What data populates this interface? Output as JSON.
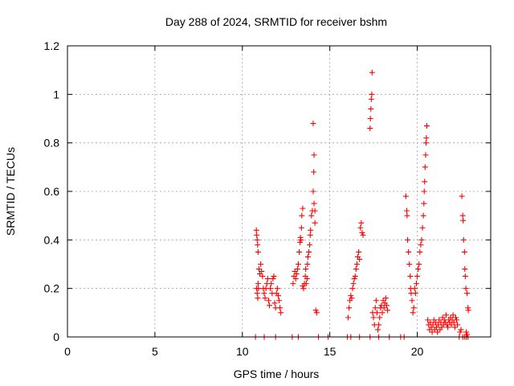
{
  "chart_data": {
    "type": "scatter",
    "title": "Day 288 of 2024, SRMTID for receiver bshm",
    "xlabel": "GPS time / hours",
    "ylabel": "SRMTID / TECUs",
    "xlim": [
      0,
      24.2
    ],
    "ylim": [
      0,
      1.2
    ],
    "xticks": [
      0,
      5,
      10,
      15,
      20
    ],
    "yticks": [
      0,
      0.2,
      0.4,
      0.6,
      0.8,
      1,
      1.2
    ],
    "xtick_labels": [
      "0",
      "5",
      "10",
      "15",
      "20"
    ],
    "ytick_labels": [
      "0",
      "0.2",
      "0.4",
      "0.6",
      "0.8",
      "1",
      "1.2"
    ],
    "grid": true,
    "marker": "+",
    "series": [
      {
        "name": "SRMTID",
        "color": "#ff0000",
        "points": [
          [
            10.75,
            0.0
          ],
          [
            10.8,
            0.44
          ],
          [
            10.82,
            0.42
          ],
          [
            10.85,
            0.4
          ],
          [
            10.87,
            0.38
          ],
          [
            10.9,
            0.35
          ],
          [
            10.82,
            0.2
          ],
          [
            10.85,
            0.18
          ],
          [
            10.88,
            0.16
          ],
          [
            10.9,
            0.22
          ],
          [
            10.92,
            0.2
          ],
          [
            10.95,
            0.28
          ],
          [
            11.0,
            0.26
          ],
          [
            11.05,
            0.3
          ],
          [
            11.1,
            0.27
          ],
          [
            11.15,
            0.25
          ],
          [
            11.2,
            0.2
          ],
          [
            11.25,
            0.18
          ],
          [
            11.3,
            0.16
          ],
          [
            11.35,
            0.2
          ],
          [
            11.4,
            0.22
          ],
          [
            11.45,
            0.24
          ],
          [
            11.5,
            0.15
          ],
          [
            11.55,
            0.13
          ],
          [
            11.6,
            0.2
          ],
          [
            11.65,
            0.22
          ],
          [
            11.7,
            0.18
          ],
          [
            11.75,
            0.24
          ],
          [
            11.8,
            0.25
          ],
          [
            11.85,
            0.14
          ],
          [
            11.9,
            0.12
          ],
          [
            11.95,
            0.18
          ],
          [
            12.0,
            0.2
          ],
          [
            12.05,
            0.17
          ],
          [
            12.1,
            0.15
          ],
          [
            12.15,
            0.12
          ],
          [
            12.2,
            0.1
          ],
          [
            11.25,
            0.0
          ],
          [
            11.9,
            0.0
          ],
          [
            12.85,
            0.0
          ],
          [
            12.9,
            0.22
          ],
          [
            12.95,
            0.25
          ],
          [
            13.0,
            0.27
          ],
          [
            13.05,
            0.24
          ],
          [
            13.1,
            0.26
          ],
          [
            13.15,
            0.28
          ],
          [
            13.2,
            0.3
          ],
          [
            13.25,
            0.35
          ],
          [
            13.3,
            0.39
          ],
          [
            13.32,
            0.41
          ],
          [
            13.35,
            0.4
          ],
          [
            13.38,
            0.45
          ],
          [
            13.4,
            0.5
          ],
          [
            13.45,
            0.53
          ],
          [
            13.45,
            0.21
          ],
          [
            13.5,
            0.2
          ],
          [
            13.55,
            0.22
          ],
          [
            13.6,
            0.25
          ],
          [
            13.62,
            0.28
          ],
          [
            13.65,
            0.22
          ],
          [
            13.7,
            0.24
          ],
          [
            13.72,
            0.3
          ],
          [
            13.75,
            0.33
          ],
          [
            13.8,
            0.35
          ],
          [
            13.85,
            0.38
          ],
          [
            13.88,
            0.42
          ],
          [
            13.9,
            0.44
          ],
          [
            13.95,
            0.5
          ],
          [
            14.0,
            0.52
          ],
          [
            14.05,
            0.6
          ],
          [
            14.08,
            0.68
          ],
          [
            14.1,
            0.75
          ],
          [
            14.05,
            0.88
          ],
          [
            14.1,
            0.55
          ],
          [
            14.15,
            0.52
          ],
          [
            14.15,
            0.47
          ],
          [
            14.2,
            0.11
          ],
          [
            14.25,
            0.1
          ],
          [
            13.2,
            0.0
          ],
          [
            14.35,
            0.0
          ],
          [
            14.9,
            0.0
          ],
          [
            16.0,
            0.0
          ],
          [
            16.05,
            0.08
          ],
          [
            16.1,
            0.12
          ],
          [
            16.15,
            0.15
          ],
          [
            16.2,
            0.17
          ],
          [
            16.25,
            0.16
          ],
          [
            16.3,
            0.2
          ],
          [
            16.35,
            0.22
          ],
          [
            16.4,
            0.24
          ],
          [
            16.45,
            0.25
          ],
          [
            16.5,
            0.28
          ],
          [
            16.55,
            0.3
          ],
          [
            16.6,
            0.33
          ],
          [
            16.65,
            0.35
          ],
          [
            16.7,
            0.32
          ],
          [
            16.75,
            0.45
          ],
          [
            16.8,
            0.47
          ],
          [
            16.85,
            0.43
          ],
          [
            16.9,
            0.42
          ],
          [
            16.2,
            0.0
          ],
          [
            16.7,
            0.0
          ],
          [
            17.3,
            0.86
          ],
          [
            17.32,
            0.9
          ],
          [
            17.35,
            0.94
          ],
          [
            17.37,
            0.98
          ],
          [
            17.4,
            1.0
          ],
          [
            17.42,
            1.09
          ],
          [
            17.45,
            0.1
          ],
          [
            17.5,
            0.08
          ],
          [
            17.55,
            0.05
          ],
          [
            17.6,
            0.12
          ],
          [
            17.65,
            0.15
          ],
          [
            17.7,
            0.1
          ],
          [
            17.75,
            0.03
          ],
          [
            17.8,
            0.05
          ],
          [
            17.85,
            0.08
          ],
          [
            17.9,
            0.12
          ],
          [
            17.95,
            0.13
          ],
          [
            18.0,
            0.1
          ],
          [
            18.05,
            0.15
          ],
          [
            18.1,
            0.12
          ],
          [
            18.15,
            0.14
          ],
          [
            18.2,
            0.16
          ],
          [
            18.25,
            0.13
          ],
          [
            18.3,
            0.11
          ],
          [
            17.3,
            0.0
          ],
          [
            17.8,
            0.0
          ],
          [
            18.4,
            0.0
          ],
          [
            19.05,
            0.0
          ],
          [
            19.25,
            0.0
          ],
          [
            19.35,
            0.58
          ],
          [
            19.4,
            0.52
          ],
          [
            19.42,
            0.5
          ],
          [
            19.45,
            0.4
          ],
          [
            19.5,
            0.35
          ],
          [
            19.55,
            0.3
          ],
          [
            19.6,
            0.25
          ],
          [
            19.62,
            0.2
          ],
          [
            19.65,
            0.18
          ],
          [
            19.7,
            0.15
          ],
          [
            19.75,
            0.1
          ],
          [
            19.8,
            0.12
          ],
          [
            19.85,
            0.2
          ],
          [
            19.9,
            0.18
          ],
          [
            19.95,
            0.22
          ],
          [
            20.0,
            0.25
          ],
          [
            20.05,
            0.28
          ],
          [
            20.1,
            0.3
          ],
          [
            20.15,
            0.35
          ],
          [
            20.2,
            0.38
          ],
          [
            20.25,
            0.4
          ],
          [
            20.3,
            0.45
          ],
          [
            20.35,
            0.5
          ],
          [
            20.38,
            0.55
          ],
          [
            20.4,
            0.6
          ],
          [
            20.42,
            0.64
          ],
          [
            20.45,
            0.7
          ],
          [
            20.48,
            0.75
          ],
          [
            20.5,
            0.8
          ],
          [
            20.52,
            0.82
          ],
          [
            20.55,
            0.87
          ],
          [
            20.6,
            0.07
          ],
          [
            20.65,
            0.05
          ],
          [
            20.7,
            0.03
          ],
          [
            20.75,
            0.06
          ],
          [
            20.8,
            0.04
          ],
          [
            20.85,
            0.02
          ],
          [
            20.9,
            0.05
          ],
          [
            20.95,
            0.07
          ],
          [
            21.0,
            0.03
          ],
          [
            21.05,
            0.06
          ],
          [
            21.1,
            0.04
          ],
          [
            21.15,
            0.02
          ],
          [
            21.2,
            0.05
          ],
          [
            21.25,
            0.07
          ],
          [
            21.3,
            0.03
          ],
          [
            21.35,
            0.06
          ],
          [
            21.4,
            0.04
          ],
          [
            21.45,
            0.08
          ],
          [
            21.5,
            0.05
          ],
          [
            21.55,
            0.07
          ],
          [
            21.6,
            0.06
          ],
          [
            21.65,
            0.09
          ],
          [
            21.7,
            0.05
          ],
          [
            21.75,
            0.04
          ],
          [
            21.8,
            0.07
          ],
          [
            21.85,
            0.06
          ],
          [
            21.9,
            0.08
          ],
          [
            21.95,
            0.05
          ],
          [
            22.0,
            0.07
          ],
          [
            22.05,
            0.09
          ],
          [
            22.1,
            0.06
          ],
          [
            22.15,
            0.04
          ],
          [
            22.2,
            0.08
          ],
          [
            22.25,
            0.07
          ],
          [
            22.3,
            0.05
          ],
          [
            22.4,
            0.0
          ],
          [
            22.45,
            0.02
          ],
          [
            22.5,
            0.03
          ],
          [
            22.55,
            0.58
          ],
          [
            22.6,
            0.5
          ],
          [
            22.62,
            0.48
          ],
          [
            22.65,
            0.4
          ],
          [
            22.7,
            0.35
          ],
          [
            22.72,
            0.28
          ],
          [
            22.75,
            0.25
          ],
          [
            22.78,
            0.2
          ],
          [
            22.8,
            0.02
          ],
          [
            22.85,
            0.01
          ],
          [
            22.9,
            0.0
          ],
          [
            22.85,
            0.18
          ],
          [
            22.9,
            0.12
          ],
          [
            22.92,
            0.11
          ],
          [
            22.6,
            0.0
          ],
          [
            22.7,
            0.0
          ],
          [
            22.8,
            0.0
          ]
        ]
      }
    ]
  }
}
